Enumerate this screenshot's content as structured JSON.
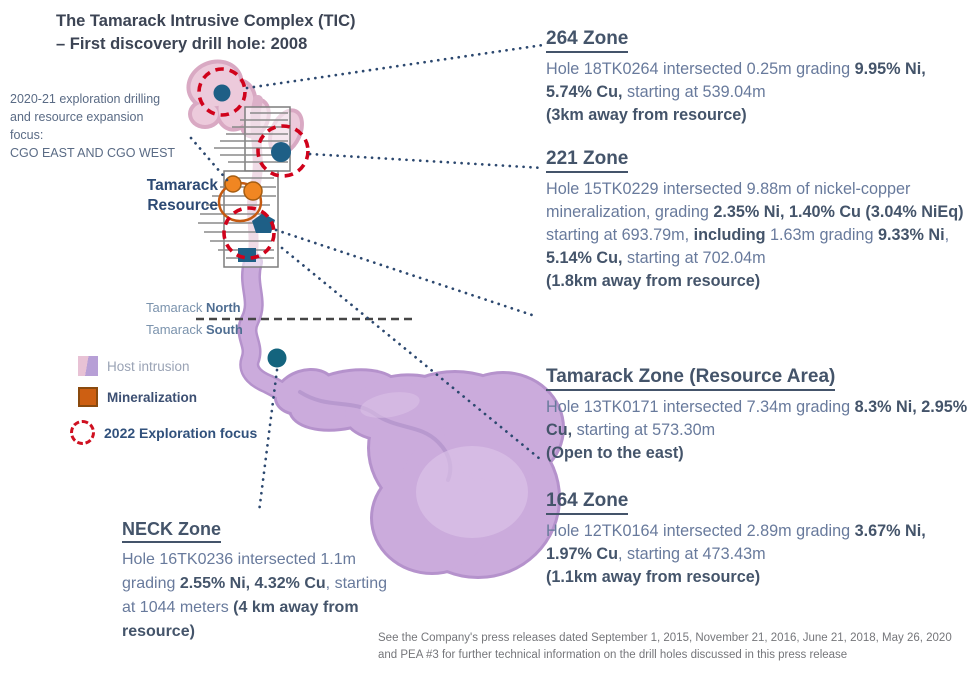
{
  "title": {
    "line1": "The Tamarack Intrusive Complex (TIC)",
    "line2": "– First discovery drill hole: 2008"
  },
  "exploration_note": {
    "line1": "2020-21 exploration drilling",
    "line2": "and resource expansion",
    "line3": "focus:",
    "line4": "CGO EAST AND CGO WEST"
  },
  "map": {
    "resource_label_line1": "Tamarack",
    "resource_label_line2": "Resource",
    "north_label": [
      {
        "t": "Tamarack "
      },
      {
        "t": "North",
        "b": true
      }
    ],
    "south_label": [
      {
        "t": "Tamarack "
      },
      {
        "t": "South",
        "b": true
      }
    ],
    "colors": {
      "host_intrusion_pink": "#e8c2d5",
      "host_intrusion_purple": "#c9aadb",
      "mineralization_orange": "#cd5f12",
      "exploration_focus_red": "#cf1020",
      "drill_hole_blue": "#1e5f86",
      "neck_drill_hole_teal": "#14647e"
    }
  },
  "legend": {
    "items": [
      {
        "label": "Host intrusion"
      },
      {
        "label": "Mineralization"
      },
      {
        "label": "2022 Exploration focus"
      }
    ]
  },
  "zones": {
    "z264": {
      "title": "264 Zone",
      "body": [
        {
          "t": "Hole 18TK0264 intersected 0.25m grading "
        },
        {
          "t": "9.95% Ni, 5.74% Cu,",
          "b": true
        },
        {
          "t": " starting at 539.04m"
        },
        {
          "br": true
        },
        {
          "t": "(3km away from resource)",
          "b": true
        }
      ]
    },
    "z221": {
      "title": "221 Zone",
      "body": [
        {
          "t": "Hole 15TK0229 intersected 9.88m of nickel-copper mineralization, grading "
        },
        {
          "t": "2.35% Ni, 1.40% Cu (3.04% NiEq)",
          "b": true
        },
        {
          "t": " starting at 693.79m, "
        },
        {
          "t": "including",
          "b": true
        },
        {
          "t": " 1.63m grading "
        },
        {
          "t": "9.33% Ni",
          "b": true
        },
        {
          "t": ", "
        },
        {
          "t": "5.14% Cu,",
          "b": true
        },
        {
          "t": " starting at 702.04m"
        },
        {
          "br": true
        },
        {
          "t": "(1.8km away from resource)",
          "b": true
        }
      ]
    },
    "tamarack": {
      "title": "Tamarack Zone (Resource Area)",
      "body": [
        {
          "t": "Hole 13TK0171 intersected 7.34m grading "
        },
        {
          "t": "8.3% Ni, 2.95% Cu,",
          "b": true
        },
        {
          "t": " starting at 573.30m"
        },
        {
          "br": true
        },
        {
          "t": "(Open to the east)",
          "b": true
        }
      ]
    },
    "z164": {
      "title": "164 Zone",
      "body": [
        {
          "t": "Hole 12TK0164 intersected 2.89m grading "
        },
        {
          "t": "3.67% Ni, 1.97% Cu",
          "b": true
        },
        {
          "t": ", starting at 473.43m"
        },
        {
          "br": true
        },
        {
          "t": "(1.1km away from resource)",
          "b": true
        }
      ]
    },
    "neck": {
      "title": "NECK Zone",
      "body": [
        {
          "t": "Hole 16TK0236 intersected 1.1m grading "
        },
        {
          "t": "2.55% Ni, 4.32% Cu",
          "b": true
        },
        {
          "t": ", starting at 1044 meters "
        },
        {
          "t": "(4 km away from resource)",
          "b": true
        }
      ]
    }
  },
  "footnote": "See the Company's press releases dated September 1, 2015, November 21, 2016, June 21, 2018, May 26, 2020 and PEA #3 for further technical information on the drill holes discussed in this press release"
}
